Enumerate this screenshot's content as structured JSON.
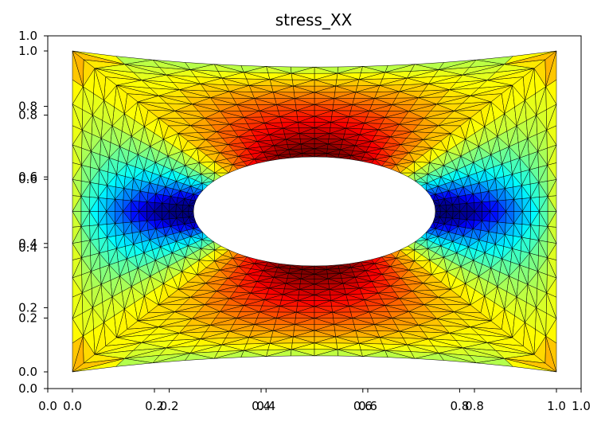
{
  "chart_data": {
    "type": "heatmap",
    "plot_kind": "triangular mesh contour (tripcolor) of finite element stress field",
    "title": "stress_XX",
    "xlabel": "",
    "ylabel": "",
    "colormap": "jet",
    "grid": false,
    "outer_axes": {
      "xlim": [
        0.0,
        1.0
      ],
      "ylim": [
        0.0,
        1.0
      ],
      "x_ticks": [
        "0.0",
        "0.2",
        "0.4",
        "0.6",
        "0.8",
        "1.0"
      ],
      "y_ticks": [
        "0.0",
        "0.2",
        "0.4",
        "0.6",
        "0.8",
        "1.0"
      ]
    },
    "inner_axes": {
      "xlim": [
        0.0,
        1.0
      ],
      "ylim": [
        0.0,
        1.0
      ],
      "x_ticks": [
        "0.0",
        "0.2",
        "0.4",
        "0.6",
        "0.8",
        "1.0"
      ],
      "y_ticks": [
        "0.0",
        "0.2",
        "0.4",
        "0.6",
        "0.8",
        "1.0"
      ]
    },
    "mesh": {
      "domain": "deformed plate with central elliptical hole",
      "x_range": [
        0.0,
        1.0
      ],
      "y_range": [
        0.0,
        1.0
      ],
      "hole_center": [
        0.5,
        0.5
      ],
      "hole_semi_axes": [
        0.25,
        0.17
      ],
      "top_edge_sag": 0.05,
      "color_range_description": "blue (low) near hole left/right, red (high) near hole top/bottom"
    }
  }
}
